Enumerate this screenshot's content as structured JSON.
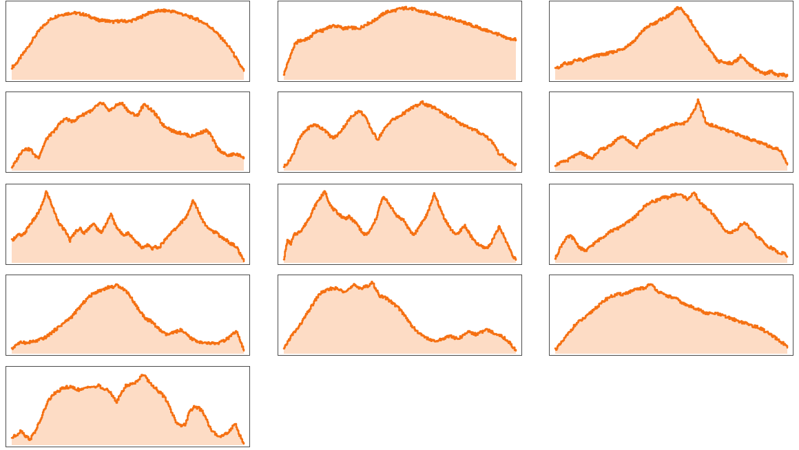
{
  "colors": {
    "line": "#f57012",
    "fill": "#fddcc5",
    "frame": "#4a4a4a",
    "background": "#ffffff"
  },
  "chart_data": [
    {
      "type": "area",
      "y": [
        17,
        22,
        30,
        38,
        46,
        55,
        63,
        70,
        76,
        81,
        84,
        87,
        88,
        89,
        90,
        90,
        89,
        88,
        86,
        84,
        81,
        80,
        80,
        79,
        78,
        79,
        79,
        79,
        79,
        81,
        83,
        86,
        89,
        91,
        92,
        93,
        93,
        93,
        92,
        91,
        89,
        87,
        85,
        83,
        81,
        78,
        75,
        71,
        66,
        60,
        54,
        47,
        40,
        30,
        20,
        12
      ],
      "ylim": [
        0,
        100
      ],
      "grid": false
    },
    {
      "type": "area",
      "y": [
        8,
        22,
        35,
        47,
        52,
        53,
        54,
        56,
        60,
        65,
        66,
        66,
        70,
        71,
        73,
        72,
        71,
        69,
        70,
        70,
        70,
        68,
        71,
        74,
        76,
        78,
        81,
        85,
        88,
        91,
        92,
        93,
        94,
        96,
        96,
        97,
        96,
        95,
        93,
        92,
        91,
        90,
        89,
        89,
        87,
        86,
        84,
        83,
        82,
        80,
        79,
        77,
        76,
        74,
        72,
        71,
        69,
        67,
        66,
        64,
        63,
        61,
        58,
        57,
        55,
        55,
        54
      ],
      "ylim": [
        0,
        100
      ],
      "grid": false
    },
    {
      "type": "area",
      "y": [
        18,
        15,
        19,
        22,
        22,
        23,
        26,
        27,
        27,
        26,
        28,
        30,
        31,
        33,
        33,
        34,
        35,
        36,
        37,
        38,
        40,
        41,
        43,
        46,
        49,
        52,
        56,
        62,
        67,
        70,
        73,
        75,
        77,
        80,
        82,
        84,
        86,
        89,
        93,
        97,
        96,
        91,
        86,
        80,
        73,
        65,
        58,
        54,
        47,
        42,
        35,
        29,
        24,
        25,
        23,
        23,
        22,
        24,
        27,
        32,
        29,
        23,
        20,
        18,
        14,
        12,
        10,
        8,
        10,
        12,
        8,
        6,
        8,
        6,
        5
      ],
      "ylim": [
        0,
        100
      ],
      "grid": false
    },
    {
      "type": "area",
      "y": [
        5,
        12,
        22,
        29,
        29,
        28,
        20,
        18,
        30,
        42,
        48,
        52,
        60,
        66,
        70,
        68,
        66,
        70,
        74,
        76,
        80,
        80,
        86,
        90,
        90,
        82,
        82,
        86,
        90,
        90,
        84,
        78,
        76,
        74,
        84,
        90,
        84,
        80,
        74,
        66,
        60,
        58,
        54,
        52,
        51,
        50,
        48,
        46,
        48,
        50,
        52,
        54,
        50,
        40,
        30,
        26,
        22,
        20,
        22,
        22,
        20,
        18
      ],
      "ylim": [
        0,
        100
      ],
      "grid": false
    },
    {
      "type": "area",
      "y": [
        6,
        12,
        22,
        38,
        48,
        55,
        60,
        62,
        58,
        56,
        48,
        44,
        48,
        56,
        64,
        72,
        78,
        80,
        74,
        62,
        50,
        42,
        52,
        60,
        68,
        70,
        74,
        78,
        82,
        86,
        88,
        92,
        88,
        86,
        84,
        80,
        76,
        72,
        70,
        64,
        62,
        60,
        56,
        54,
        50,
        48,
        42,
        36,
        24,
        20,
        14,
        10,
        8
      ],
      "ylim": [
        0,
        100
      ],
      "grid": false
    },
    {
      "type": "area",
      "y": [
        8,
        10,
        12,
        14,
        18,
        20,
        24,
        22,
        18,
        16,
        24,
        28,
        30,
        32,
        36,
        42,
        46,
        44,
        40,
        36,
        32,
        40,
        44,
        48,
        50,
        54,
        56,
        58,
        60,
        62,
        64,
        62,
        66,
        72,
        80,
        94,
        80,
        64,
        62,
        60,
        58,
        56,
        54,
        52,
        50,
        48,
        46,
        44,
        42,
        40,
        38,
        36,
        34,
        32,
        30,
        28,
        20,
        8
      ],
      "ylim": [
        0,
        100
      ],
      "grid": false
    },
    {
      "type": "area",
      "y": [
        30,
        35,
        38,
        36,
        42,
        50,
        56,
        62,
        70,
        80,
        96,
        86,
        74,
        62,
        52,
        46,
        40,
        30,
        38,
        44,
        46,
        40,
        44,
        50,
        52,
        46,
        40,
        48,
        56,
        66,
        54,
        46,
        40,
        38,
        40,
        36,
        30,
        26,
        20,
        22,
        24,
        18,
        22,
        20,
        26,
        32,
        38,
        42,
        46,
        52,
        56,
        62,
        70,
        84,
        76,
        66,
        56,
        50,
        46,
        42,
        40,
        36,
        32,
        30,
        26,
        24,
        20,
        10,
        2
      ],
      "ylim": [
        0,
        100
      ],
      "grid": false
    },
    {
      "type": "area",
      "y": [
        6,
        30,
        26,
        38,
        40,
        44,
        50,
        58,
        66,
        76,
        84,
        90,
        96,
        84,
        74,
        70,
        66,
        62,
        60,
        62,
        58,
        54,
        48,
        40,
        38,
        42,
        50,
        60,
        76,
        88,
        84,
        78,
        70,
        64,
        60,
        58,
        50,
        42,
        38,
        44,
        52,
        58,
        66,
        80,
        92,
        82,
        70,
        60,
        52,
        44,
        40,
        38,
        46,
        50,
        42,
        34,
        28,
        24,
        22,
        20,
        22,
        30,
        40,
        48,
        40,
        30,
        20,
        10,
        4
      ],
      "ylim": [
        0,
        100
      ],
      "grid": false
    },
    {
      "type": "area",
      "y": [
        6,
        18,
        28,
        34,
        36,
        30,
        22,
        18,
        16,
        22,
        26,
        30,
        34,
        38,
        42,
        44,
        46,
        50,
        52,
        56,
        60,
        64,
        70,
        76,
        80,
        82,
        84,
        86,
        88,
        88,
        90,
        92,
        92,
        90,
        86,
        90,
        94,
        84,
        78,
        74,
        70,
        64,
        56,
        50,
        44,
        40,
        42,
        44,
        52,
        54,
        48,
        42,
        36,
        32,
        26,
        22,
        20,
        16,
        12,
        14,
        8
      ],
      "ylim": [
        0,
        100
      ],
      "grid": false
    },
    {
      "type": "area",
      "y": [
        6,
        12,
        14,
        16,
        14,
        16,
        16,
        18,
        20,
        22,
        26,
        30,
        34,
        38,
        42,
        46,
        50,
        56,
        62,
        68,
        74,
        78,
        82,
        84,
        86,
        88,
        90,
        90,
        92,
        90,
        86,
        82,
        74,
        66,
        58,
        52,
        46,
        44,
        40,
        34,
        30,
        26,
        26,
        28,
        30,
        32,
        28,
        24,
        20,
        18,
        16,
        14,
        14,
        14,
        14,
        14,
        16,
        18,
        22,
        26,
        30,
        16,
        4
      ],
      "ylim": [
        0,
        100
      ],
      "grid": false
    },
    {
      "type": "area",
      "y": [
        6,
        16,
        24,
        30,
        36,
        44,
        52,
        60,
        68,
        76,
        82,
        84,
        86,
        88,
        88,
        86,
        84,
        86,
        88,
        92,
        90,
        88,
        90,
        92,
        96,
        86,
        78,
        76,
        74,
        70,
        66,
        62,
        56,
        50,
        42,
        36,
        30,
        26,
        24,
        20,
        18,
        16,
        18,
        20,
        22,
        24,
        22,
        20,
        22,
        26,
        30,
        28,
        26,
        28,
        30,
        32,
        30,
        28,
        26,
        24,
        20,
        16,
        10,
        4
      ],
      "ylim": [
        0,
        100
      ],
      "grid": false
    },
    {
      "type": "area",
      "y": [
        6,
        12,
        20,
        28,
        36,
        42,
        46,
        50,
        56,
        62,
        66,
        72,
        76,
        78,
        80,
        80,
        82,
        84,
        86,
        88,
        88,
        94,
        90,
        84,
        80,
        78,
        76,
        74,
        70,
        66,
        64,
        62,
        60,
        56,
        54,
        54,
        54,
        52,
        50,
        48,
        46,
        44,
        42,
        40,
        38,
        36,
        34,
        30,
        26,
        22,
        18,
        14,
        8
      ],
      "ylim": [
        0,
        100
      ],
      "grid": false
    },
    {
      "type": "area",
      "y": [
        10,
        14,
        20,
        12,
        8,
        18,
        30,
        46,
        60,
        68,
        72,
        76,
        78,
        78,
        76,
        74,
        76,
        80,
        78,
        80,
        76,
        74,
        68,
        58,
        70,
        80,
        82,
        84,
        90,
        96,
        86,
        80,
        74,
        68,
        60,
        46,
        32,
        26,
        28,
        44,
        52,
        50,
        44,
        30,
        18,
        14,
        12,
        16,
        20,
        30,
        14,
        2
      ],
      "ylim": [
        0,
        100
      ],
      "grid": false
    }
  ]
}
